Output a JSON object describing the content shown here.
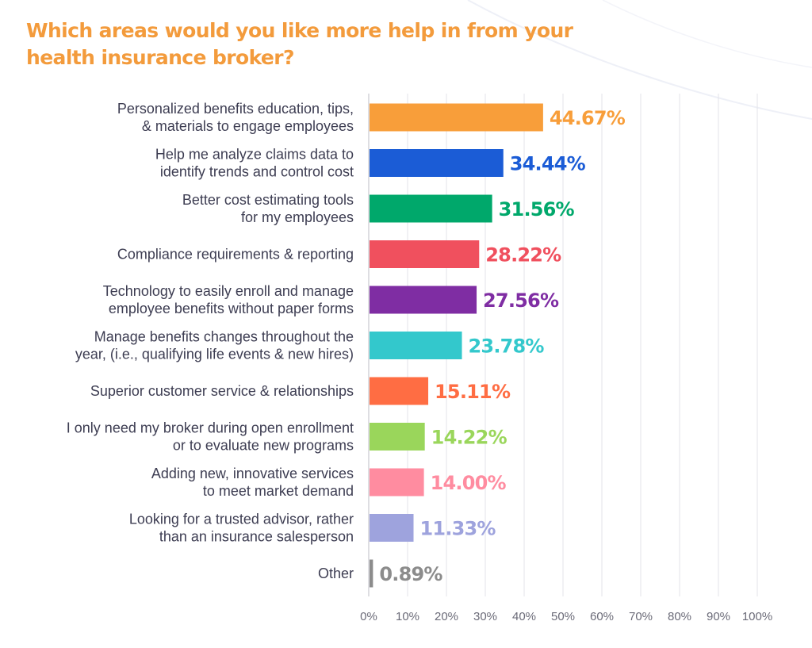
{
  "chart_data": {
    "type": "bar",
    "orientation": "horizontal",
    "title": "Which areas would you like more help in from your health insurance broker?",
    "categories": [
      [
        "Personalized benefits education, tips,",
        "& materials to engage employees"
      ],
      [
        "Help me analyze claims data to",
        "identify trends and control cost"
      ],
      [
        "Better cost estimating tools",
        "for my employees"
      ],
      [
        "Compliance requirements & reporting"
      ],
      [
        "Technology to easily enroll and manage",
        "employee benefits without paper forms"
      ],
      [
        "Manage benefits changes throughout the",
        "year, (i.e., qualifying life events & new hires)"
      ],
      [
        "Superior customer service & relationships"
      ],
      [
        "I only need my broker during open enrollment",
        "or to evaluate new programs"
      ],
      [
        "Adding new, innovative services",
        "to meet market demand"
      ],
      [
        "Looking for a trusted advisor, rather",
        "than an insurance salesperson"
      ],
      [
        "Other"
      ]
    ],
    "values": [
      44.67,
      34.44,
      31.56,
      28.22,
      27.56,
      23.78,
      15.11,
      14.22,
      14.0,
      11.33,
      0.89
    ],
    "value_labels": [
      "44.67%",
      "34.44%",
      "31.56%",
      "28.22%",
      "27.56%",
      "23.78%",
      "15.11%",
      "14.22%",
      "14.00%",
      "11.33%",
      "0.89%"
    ],
    "colors": [
      "#f89e3a",
      "#1b5cd6",
      "#00a86b",
      "#f0505e",
      "#7f2da3",
      "#33c8cc",
      "#ff6d43",
      "#9ad65b",
      "#ff8ca0",
      "#9ea3dd",
      "#8c8c8c"
    ],
    "xlim": [
      0,
      100
    ],
    "x_ticks": [
      0,
      10,
      20,
      30,
      40,
      50,
      60,
      70,
      80,
      90,
      100
    ],
    "x_tick_labels": [
      "0%",
      "10%",
      "20%",
      "30%",
      "40%",
      "50%",
      "60%",
      "70%",
      "80%",
      "90%",
      "100%"
    ],
    "grid": true,
    "xlabel": "",
    "ylabel": ""
  }
}
